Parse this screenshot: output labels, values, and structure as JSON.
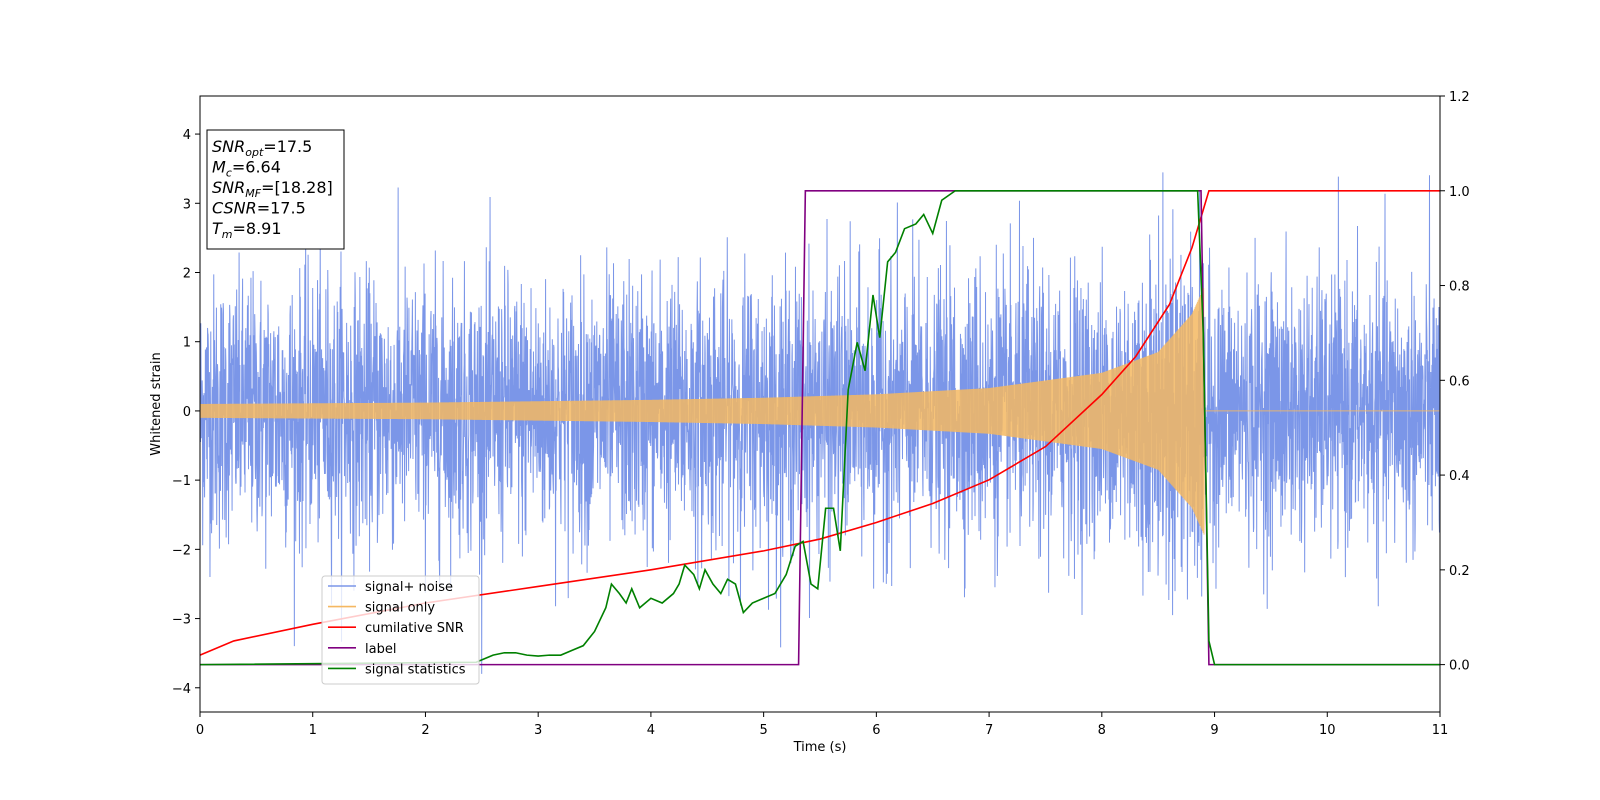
{
  "chart_data": {
    "type": "line",
    "xlabel": "Time (s)",
    "ylabel": "Whitened strain",
    "xlim": [
      0,
      11
    ],
    "ylim_left": [
      -4.35,
      4.55
    ],
    "ylim_right": [
      -0.1,
      1.2
    ],
    "x_ticks": [
      0,
      1,
      2,
      3,
      4,
      5,
      6,
      7,
      8,
      9,
      10,
      11
    ],
    "y_ticks_left": [
      -4,
      -3,
      -2,
      -1,
      0,
      1,
      2,
      3,
      4
    ],
    "y_ticks_right": [
      0.0,
      0.2,
      0.4,
      0.6,
      0.8,
      1.0,
      1.2
    ],
    "grid": false,
    "legend_position": "lower-left",
    "info_box": {
      "lines": [
        {
          "main": "SNR",
          "sub": "opt",
          "value": "=17.5"
        },
        {
          "main": "M",
          "sub": "c",
          "value": "=6.64"
        },
        {
          "main": "SNR",
          "sub": "MF",
          "value": "=[18.28]"
        },
        {
          "main": "CSNR",
          "sub": "",
          "value": "=17.5"
        },
        {
          "main": "T",
          "sub": "m",
          "value": "=8.91"
        }
      ]
    },
    "series": [
      {
        "name": "signal+ noise",
        "color": "#7b96e8",
        "axis": "left",
        "kind": "noise",
        "std": 0.95,
        "peak_range": [
          -3.8,
          4.2
        ]
      },
      {
        "name": "signal only",
        "color": "#f5b862",
        "axis": "left",
        "kind": "chirp",
        "merger_time": 8.91,
        "envelope": {
          "x": [
            0,
            1,
            2,
            3,
            4,
            5,
            6,
            7,
            8,
            8.5,
            8.8,
            8.91
          ],
          "y": [
            0.1,
            0.11,
            0.12,
            0.14,
            0.16,
            0.19,
            0.24,
            0.33,
            0.55,
            0.85,
            1.4,
            1.8
          ]
        }
      },
      {
        "name": "cumilative SNR",
        "color": "#ff0000",
        "axis": "right",
        "x": [
          0,
          0.3,
          1,
          2,
          3,
          4,
          5,
          5.5,
          6,
          6.5,
          7,
          7.5,
          8,
          8.3,
          8.6,
          8.8,
          8.9,
          8.95,
          11
        ],
        "y": [
          0.02,
          0.05,
          0.085,
          0.13,
          0.165,
          0.2,
          0.24,
          0.265,
          0.3,
          0.34,
          0.39,
          0.46,
          0.57,
          0.65,
          0.76,
          0.88,
          0.96,
          1.0,
          1.0
        ]
      },
      {
        "name": "label",
        "color": "#800080",
        "axis": "right",
        "x": [
          0,
          5.31,
          5.37,
          8.88,
          8.95,
          11
        ],
        "y": [
          0.0,
          0.0,
          1.0,
          1.0,
          0.0,
          0.0
        ]
      },
      {
        "name": "signal statistics",
        "color": "#008000",
        "axis": "right",
        "x": [
          0,
          2.45,
          2.55,
          2.6,
          2.7,
          2.8,
          2.9,
          3.0,
          3.1,
          3.2,
          3.3,
          3.4,
          3.5,
          3.6,
          3.65,
          3.72,
          3.78,
          3.83,
          3.9,
          4.0,
          4.1,
          4.2,
          4.25,
          4.3,
          4.38,
          4.43,
          4.48,
          4.55,
          4.62,
          4.68,
          4.75,
          4.82,
          4.9,
          5.0,
          5.1,
          5.2,
          5.28,
          5.35,
          5.42,
          5.48,
          5.55,
          5.62,
          5.68,
          5.75,
          5.83,
          5.9,
          5.97,
          6.03,
          6.1,
          6.17,
          6.25,
          6.35,
          6.42,
          6.5,
          6.58,
          6.7,
          6.9,
          7.1,
          8.85,
          8.9,
          8.95,
          9.0,
          11
        ],
        "y": [
          0.0,
          0.005,
          0.015,
          0.02,
          0.025,
          0.025,
          0.02,
          0.018,
          0.02,
          0.02,
          0.03,
          0.04,
          0.07,
          0.12,
          0.17,
          0.15,
          0.13,
          0.16,
          0.12,
          0.14,
          0.13,
          0.15,
          0.17,
          0.21,
          0.19,
          0.16,
          0.2,
          0.17,
          0.15,
          0.18,
          0.17,
          0.11,
          0.13,
          0.14,
          0.15,
          0.19,
          0.25,
          0.26,
          0.17,
          0.16,
          0.33,
          0.33,
          0.24,
          0.58,
          0.68,
          0.62,
          0.78,
          0.69,
          0.85,
          0.87,
          0.92,
          0.93,
          0.95,
          0.91,
          0.98,
          1.0,
          1.0,
          1.0,
          1.0,
          0.7,
          0.05,
          0.0,
          0.0
        ]
      }
    ]
  }
}
